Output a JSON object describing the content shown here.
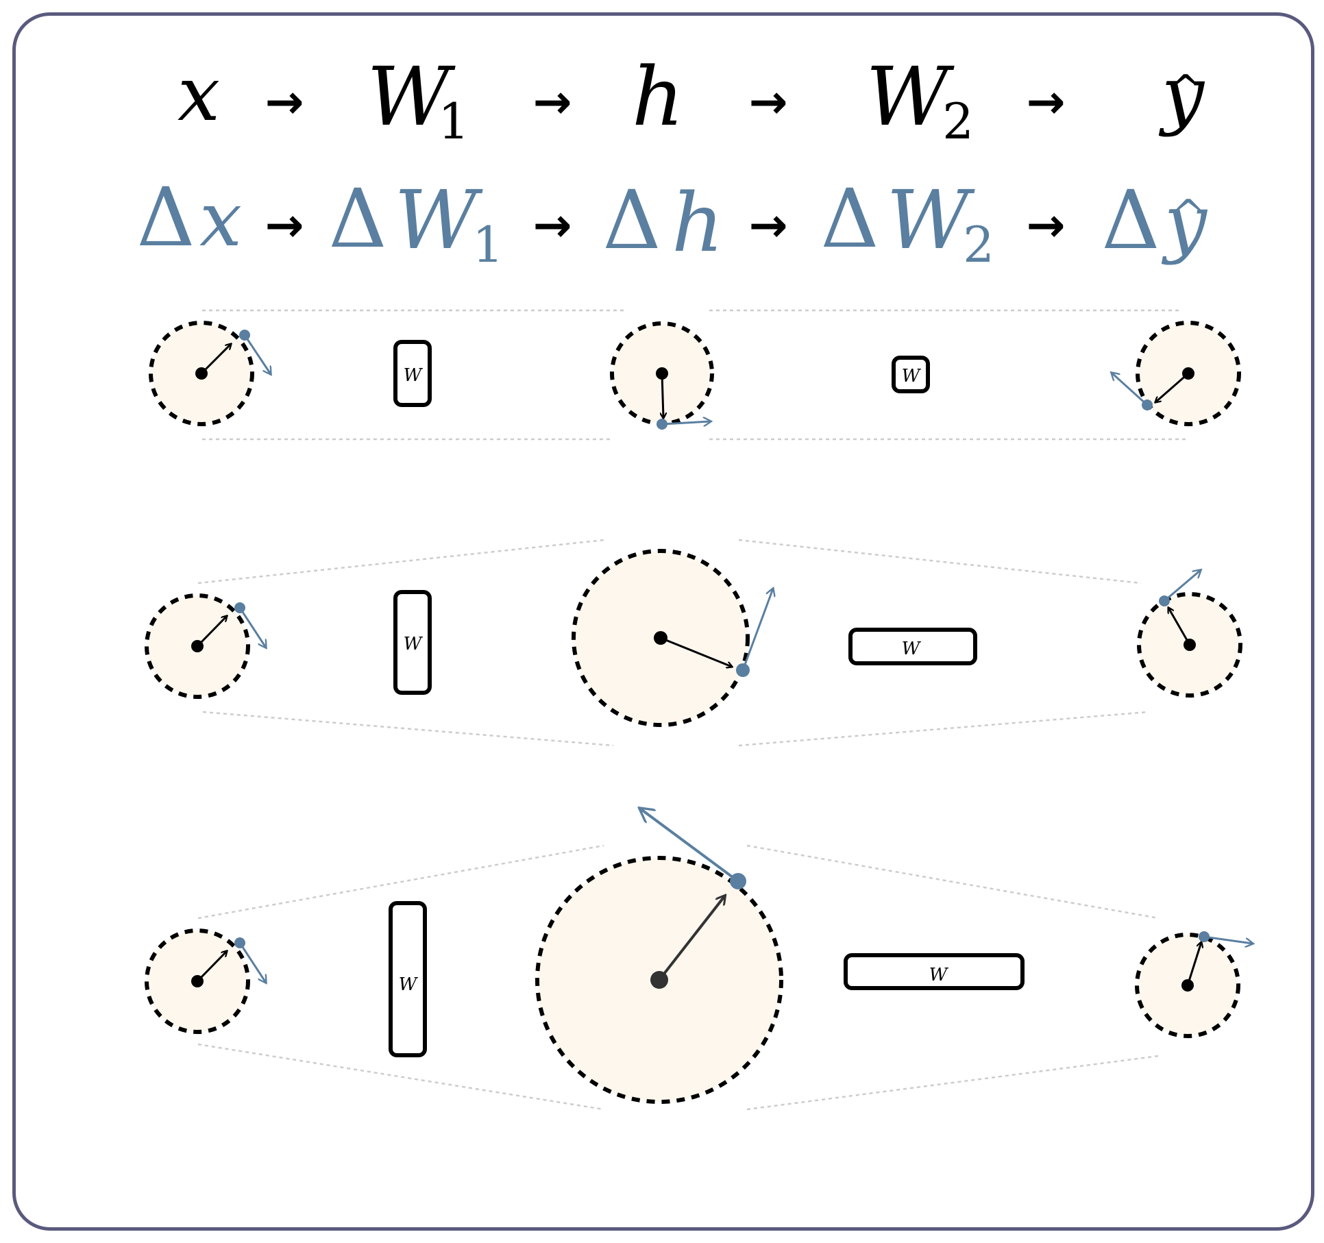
{
  "equations": {
    "forward": [
      {
        "base": "x",
        "sub": "",
        "hat": false
      },
      {
        "base": "W",
        "sub": "1",
        "hat": false
      },
      {
        "base": "h",
        "sub": "",
        "hat": false
      },
      {
        "base": "W",
        "sub": "2",
        "hat": false
      },
      {
        "base": "y",
        "sub": "",
        "hat": true
      }
    ],
    "backward": [
      {
        "delta": "Δ",
        "base": "x",
        "sub": "",
        "hat": false
      },
      {
        "delta": "Δ",
        "base": "W",
        "sub": "1",
        "hat": false
      },
      {
        "delta": "Δ",
        "base": "h",
        "sub": "",
        "hat": false
      },
      {
        "delta": "Δ",
        "base": "W",
        "sub": "2",
        "hat": false
      },
      {
        "delta": "Δ",
        "base": "y",
        "sub": "",
        "hat": true
      }
    ],
    "arrow_glyph": "→",
    "hat_glyph": "^"
  },
  "weight_label": "W",
  "colors": {
    "frame": "#5a5a7e",
    "perturbation": "#5a7fa0",
    "vector": "#000000",
    "circle_fill": "#fdf7ee",
    "guide": "#cccccc"
  }
}
